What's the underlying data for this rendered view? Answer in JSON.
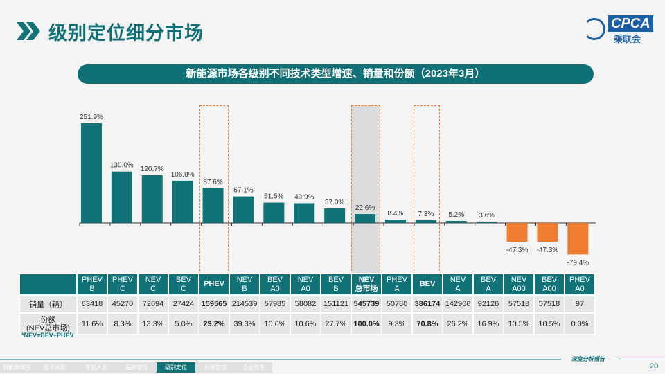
{
  "header": {
    "title": "级别定位细分市场",
    "logo_text": "CPCA",
    "logo_sub": "乘联会"
  },
  "banner": "新能源市场各级别不同技术类型增速、销量和份额（2023年3月）",
  "colors": {
    "teal": "#117377",
    "orange": "#ee7d31",
    "highlight": "#d9d9d9"
  },
  "chart_data": {
    "type": "bar",
    "categories": [
      "PHEV B",
      "PHEV C",
      "NEV C",
      "BEV C",
      "PHEV",
      "NEV B",
      "BEV A0",
      "NEV A0",
      "BEV B",
      "NEV 总市场",
      "PHEV A",
      "BEV",
      "NEV A",
      "BEV A",
      "NEV A00",
      "BEV A00",
      "PHEV A0"
    ],
    "values": [
      251.9,
      130.0,
      120.7,
      106.9,
      87.6,
      67.1,
      51.5,
      49.9,
      37.0,
      22.6,
      8.4,
      7.3,
      5.2,
      3.6,
      -47.3,
      -47.3,
      -79.4
    ],
    "labels": [
      "251.9%",
      "130.0%",
      "120.7%",
      "106.9%",
      "87.6%",
      "67.1%",
      "51.5%",
      "49.9%",
      "37.0%",
      "22.6%",
      "8.4%",
      "7.3%",
      "5.2%",
      "3.6%",
      "-47.3%",
      "-47.3%",
      "-79.4%"
    ],
    "unit": "%",
    "highlighted": [
      "PHEV",
      "NEV 总市场",
      "BEV"
    ]
  },
  "table": {
    "headers": [
      [
        "PHEV",
        "B"
      ],
      [
        "PHEV",
        "C"
      ],
      [
        "NEV",
        "C"
      ],
      [
        "BEV",
        "C"
      ],
      [
        "PHEV",
        ""
      ],
      [
        "NEV",
        "B"
      ],
      [
        "BEV",
        "A0"
      ],
      [
        "NEV",
        "A0"
      ],
      [
        "BEV",
        "B"
      ],
      [
        "NEV",
        "总市场"
      ],
      [
        "PHEV",
        "A"
      ],
      [
        "BEV",
        ""
      ],
      [
        "NEV",
        "A"
      ],
      [
        "BEV",
        "A"
      ],
      [
        "NEV",
        "A00"
      ],
      [
        "BEV",
        "A00"
      ],
      [
        "PHEV",
        "A0"
      ]
    ],
    "row1_label": "销量（辆）",
    "row1": [
      "63418",
      "45270",
      "72694",
      "27424",
      "159565",
      "214539",
      "57985",
      "58082",
      "151121",
      "545739",
      "50780",
      "386174",
      "142906",
      "92126",
      "57518",
      "57518",
      "97"
    ],
    "row2_label_1": "份额",
    "row2_label_2": "(NEV总市场)",
    "row2": [
      "11.6%",
      "8.3%",
      "13.3%",
      "5.0%",
      "29.2%",
      "39.3%",
      "10.6%",
      "10.6%",
      "27.7%",
      "100.0%",
      "9.3%",
      "70.8%",
      "26.2%",
      "16.9%",
      "10.5%",
      "10.5%",
      "0.0%"
    ]
  },
  "note": "*NEV=BEV+PHEV",
  "footer": {
    "tag": "深度分析报告",
    "page": "20",
    "nav": [
      "新能源市场",
      "技术类型",
      "车型大类",
      "品牌定位",
      "级别定位",
      "价格定位",
      "企业竞争"
    ],
    "active": 4
  }
}
